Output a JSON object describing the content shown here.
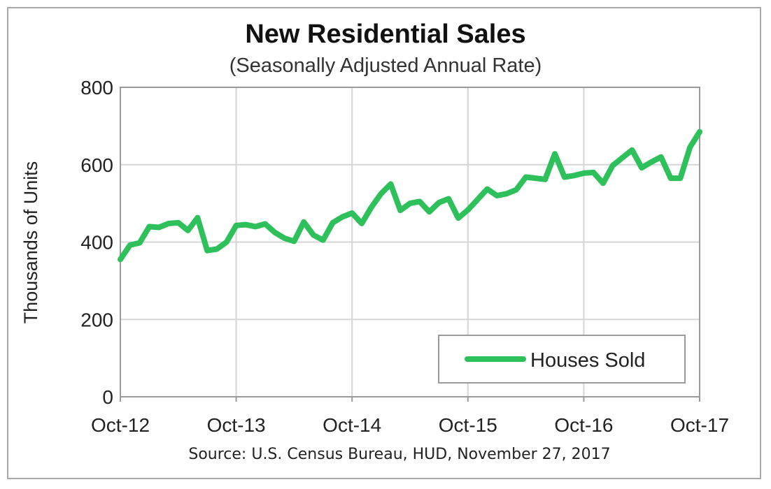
{
  "chart_data": {
    "type": "line",
    "title": "New Residential Sales",
    "subtitle": "(Seasonally Adjusted Annual Rate)",
    "ylabel": "Thousands of Units",
    "xlabel": "",
    "ylim": [
      0,
      800
    ],
    "yticks": [
      0,
      200,
      400,
      600,
      800
    ],
    "xticks": [
      "Oct-12",
      "Oct-13",
      "Oct-14",
      "Oct-15",
      "Oct-16",
      "Oct-17"
    ],
    "grid": true,
    "legend_position": "bottom-right",
    "series": [
      {
        "name": "Houses Sold",
        "color": "#2ec05a",
        "x": [
          "Oct-12",
          "Nov-12",
          "Dec-12",
          "Jan-13",
          "Feb-13",
          "Mar-13",
          "Apr-13",
          "May-13",
          "Jun-13",
          "Jul-13",
          "Aug-13",
          "Sep-13",
          "Oct-13",
          "Nov-13",
          "Dec-13",
          "Jan-14",
          "Feb-14",
          "Mar-14",
          "Apr-14",
          "May-14",
          "Jun-14",
          "Jul-14",
          "Aug-14",
          "Sep-14",
          "Oct-14",
          "Nov-14",
          "Dec-14",
          "Jan-15",
          "Feb-15",
          "Mar-15",
          "Apr-15",
          "May-15",
          "Jun-15",
          "Jul-15",
          "Aug-15",
          "Sep-15",
          "Oct-15",
          "Nov-15",
          "Dec-15",
          "Jan-16",
          "Feb-16",
          "Mar-16",
          "Apr-16",
          "May-16",
          "Jun-16",
          "Jul-16",
          "Aug-16",
          "Sep-16",
          "Oct-16",
          "Nov-16",
          "Dec-16",
          "Jan-17",
          "Feb-17",
          "Mar-17",
          "Apr-17",
          "May-17",
          "Jun-17",
          "Jul-17",
          "Aug-17",
          "Sep-17",
          "Oct-17"
        ],
        "values": [
          355,
          392,
          398,
          440,
          438,
          448,
          450,
          430,
          463,
          378,
          382,
          400,
          443,
          445,
          440,
          447,
          425,
          410,
          402,
          452,
          418,
          405,
          450,
          465,
          475,
          448,
          490,
          525,
          550,
          482,
          500,
          505,
          478,
          502,
          512,
          462,
          483,
          510,
          537,
          520,
          525,
          535,
          568,
          565,
          562,
          628,
          568,
          572,
          578,
          580,
          552,
          598,
          618,
          638,
          592,
          607,
          620,
          565,
          565,
          645,
          685
        ]
      }
    ]
  },
  "source_text": "Source:  U.S. Census Bureau, HUD, November 27, 2017"
}
